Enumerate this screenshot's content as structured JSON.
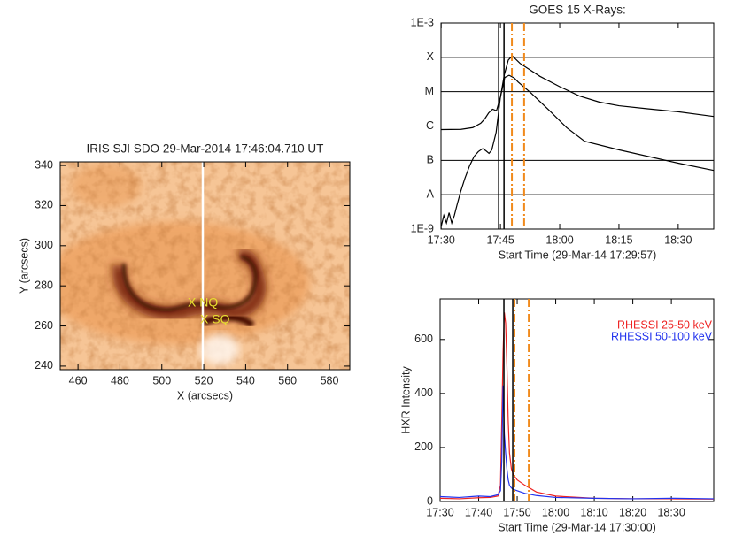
{
  "chart_data": [
    {
      "type": "image",
      "title": "IRIS SJI SDO 29-Mar-2014 17:46:04.710 UT",
      "xlabel": "X (arcsecs)",
      "ylabel": "Y (arcsecs)",
      "xlim": [
        451.5,
        589.7
      ],
      "ylim": [
        238.2,
        341.8
      ],
      "xticks": [
        460,
        480,
        500,
        520,
        540,
        560,
        580
      ],
      "yticks": [
        240,
        260,
        280,
        300,
        320,
        340
      ],
      "annotations": [
        "X NQ",
        "X SQ"
      ]
    },
    {
      "type": "line",
      "title": "GOES 15 X-Rays:",
      "xlabel": "Start Time (29-Mar-14 17:29:57)",
      "xlim": [
        "17:29:57",
        "18:39:00"
      ],
      "xticks": [
        "17:30",
        "17:45",
        "18:00",
        "18:15",
        "18:30"
      ],
      "ylim": [
        1e-09,
        0.001
      ],
      "yscale": "log",
      "grid": true,
      "yticks": [
        {
          "value": 1e-09,
          "label": "1E-9"
        },
        {
          "value": 1e-08,
          "label": "A"
        },
        {
          "value": 1e-07,
          "label": "B"
        },
        {
          "value": 1e-06,
          "label": "C"
        },
        {
          "value": 1e-05,
          "label": "M"
        },
        {
          "value": 0.0001,
          "label": "X"
        },
        {
          "value": 0.001,
          "label": "1E-3"
        }
      ],
      "series": [
        {
          "color": "#000000",
          "x": [
            "17:29:57",
            "17:35:00",
            "17:38:00",
            "17:40:00",
            "17:41:00",
            "17:42:00",
            "17:43:00",
            "17:44:00",
            "17:45:00",
            "17:46:00",
            "17:47:00",
            "17:48:00",
            "17:50:00",
            "17:55:00",
            "18:00:00",
            "18:05:00",
            "18:10:00",
            "18:15:00",
            "18:22:00",
            "18:30:00",
            "18:39:00"
          ],
          "values": [
            7.9e-07,
            8e-07,
            9e-07,
            1.2e-06,
            1.6e-06,
            2.4e-06,
            3.1e-06,
            2.8e-06,
            7e-06,
            3.2e-05,
            8.4e-05,
            0.00011,
            6.6e-05,
            2.8e-05,
            1.4e-05,
            7.5e-06,
            5e-06,
            3.9e-06,
            3.2e-06,
            2.6e-06,
            1.9e-06
          ]
        },
        {
          "color": "#000000",
          "x": [
            "17:30:00",
            "17:30:40",
            "17:31:20",
            "17:32:00",
            "17:32:40",
            "17:33:20",
            "17:34:00",
            "17:34:54",
            "17:36:00",
            "17:37:12",
            "17:38:20",
            "17:39:24",
            "17:40:30",
            "17:41:20",
            "17:42:06",
            "17:42:48",
            "17:43:54",
            "17:45:00",
            "17:46:06",
            "17:47:12",
            "17:48:30",
            "17:49:30",
            "17:52:48",
            "17:57:18",
            "18:01:48",
            "18:06:18",
            "18:15:12",
            "18:30:00",
            "18:39:00"
          ],
          "values": [
            1.2e-09,
            2.5e-09,
            1.5e-09,
            3e-09,
            1.5e-09,
            2.5e-09,
            5e-09,
            1.2e-08,
            3e-08,
            7e-08,
            1.3e-07,
            1.8e-07,
            2.2e-07,
            1.9e-07,
            1.6e-07,
            2e-07,
            6.5e-07,
            7e-06,
            2.6e-05,
            3e-05,
            2.5e-05,
            1.9e-05,
            9e-06,
            2.9e-06,
            8.9e-07,
            3.6e-07,
            2e-07,
            8.3e-08,
            5.1e-08
          ]
        }
      ],
      "vlines": [
        {
          "x": "17:44:33",
          "color": "#000000",
          "style": "solid"
        },
        {
          "x": "17:45:54",
          "color": "#000000",
          "style": "solid"
        },
        {
          "x": "17:47:54",
          "color": "#f08a1c",
          "style": "dashdot"
        },
        {
          "x": "17:51:00",
          "color": "#f08a1c",
          "style": "dashdot"
        }
      ]
    },
    {
      "type": "line",
      "xlabel": "Start Time (29-Mar-14 17:30:00)",
      "ylabel": "HXR Intensity",
      "xlim": [
        "17:30",
        "18:41"
      ],
      "xticks": [
        "17:30",
        "17:40",
        "17:50",
        "18:00",
        "18:10",
        "18:20",
        "18:30"
      ],
      "ylim": [
        0,
        750
      ],
      "yticks": [
        0,
        200,
        400,
        600
      ],
      "legend": "upper right",
      "series": [
        {
          "name": "RHESSI 25-50 keV",
          "color": "#ee2222",
          "x": [
            "17:30:00",
            "17:35:00",
            "17:40:00",
            "17:43:00",
            "17:45:00",
            "17:45:40",
            "17:46:00",
            "17:46:20",
            "17:46:40",
            "17:47:00",
            "17:47:20",
            "17:47:40",
            "17:48:00",
            "17:48:30",
            "17:49:00",
            "17:50:00",
            "17:52:00",
            "17:55:00",
            "18:00:00",
            "18:10:00",
            "18:20:00",
            "18:30:00",
            "18:41:00"
          ],
          "values": [
            12,
            10,
            14,
            15,
            20,
            60,
            300,
            550,
            700,
            660,
            500,
            300,
            180,
            120,
            100,
            80,
            60,
            35,
            20,
            12,
            10,
            10,
            9
          ]
        },
        {
          "name": "RHESSI 50-100 keV",
          "color": "#2233ee",
          "x": [
            "17:30:00",
            "17:35:00",
            "17:40:00",
            "17:43:00",
            "17:45:00",
            "17:45:40",
            "17:46:00",
            "17:46:20",
            "17:46:40",
            "17:47:00",
            "17:47:20",
            "17:47:40",
            "17:48:00",
            "17:48:30",
            "17:49:00",
            "17:50:00",
            "17:52:00",
            "17:55:00",
            "18:00:00",
            "18:10:00",
            "18:20:00",
            "18:30:00",
            "18:41:00"
          ],
          "values": [
            18,
            15,
            20,
            18,
            25,
            40,
            150,
            430,
            250,
            180,
            120,
            80,
            60,
            50,
            45,
            40,
            30,
            22,
            15,
            12,
            10,
            12,
            10
          ]
        }
      ],
      "vlines": [
        {
          "x": "17:46:33",
          "color": "#000000",
          "style": "solid"
        },
        {
          "x": "17:48:51",
          "color": "#000000",
          "style": "solid"
        },
        {
          "x": "17:49:18",
          "color": "#f08a1c",
          "style": "dashdot"
        },
        {
          "x": "17:53:00",
          "color": "#f08a1c",
          "style": "dashdot"
        }
      ]
    }
  ]
}
